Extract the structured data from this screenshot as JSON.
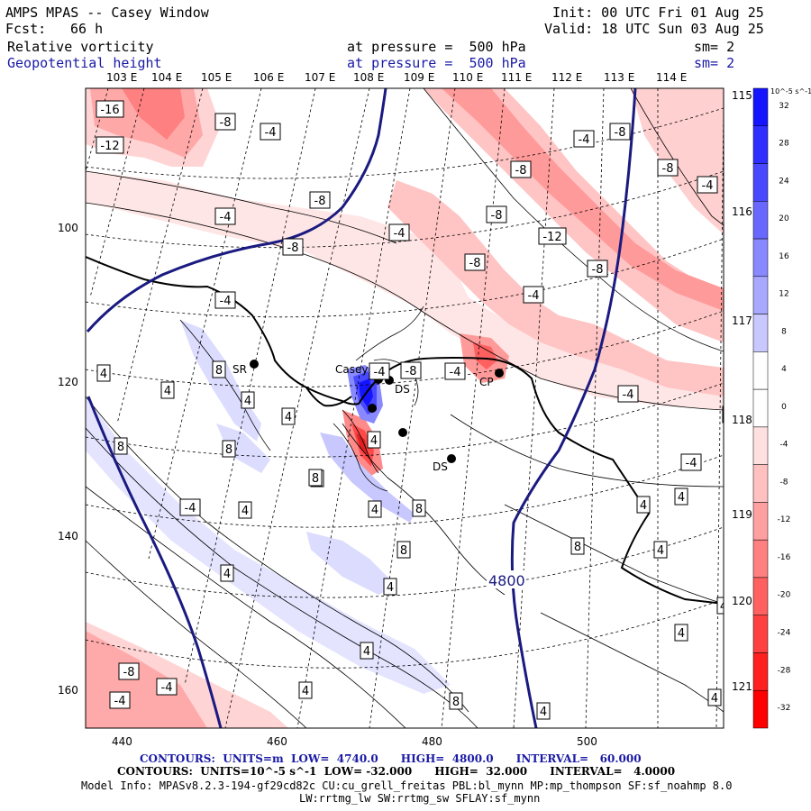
{
  "header": {
    "title": "AMPS MPAS -- Casey Window",
    "init": "Init: 00 UTC Fri 01 Aug 25",
    "fcst_label": "Fcst:",
    "fcst_value": "66 h",
    "valid": "Valid: 18 UTC Sun 03 Aug 25",
    "field1": "Relative vorticity",
    "field1_level": "at pressure =  500 hPa",
    "field1_sm": "sm= 2",
    "field2": "Geopotential height",
    "field2_level": "at pressure =  500 hPa",
    "field2_sm": "sm= 2"
  },
  "lon_labels": [
    "103 E",
    "104 E",
    "105 E",
    "106 E",
    "107 E",
    "108 E",
    "109 E",
    "110 E",
    "111 E",
    "112 E",
    "113 E",
    "114 E",
    "115 E",
    "116 E",
    "117 E",
    "118 E",
    "119 E",
    "120 E",
    "121 E"
  ],
  "x_axis": [
    "440",
    "460",
    "480",
    "500"
  ],
  "y_axis": [
    "100",
    "120",
    "140",
    "160"
  ],
  "stations": [
    "SR",
    "Casey",
    "DS",
    "CP",
    "DS"
  ],
  "height_contour_label": "4800",
  "vort_labels": [
    "-16",
    "-12",
    "-8",
    "-4",
    "-4",
    "-8",
    "-4",
    "-8",
    "-4",
    "-4",
    "-8",
    "-8",
    "-8",
    "-4",
    "-8",
    "-12",
    "-8",
    "-8",
    "-4",
    "-4",
    "-4",
    "4",
    "4",
    "8",
    "4",
    "8",
    "4",
    "8",
    "8",
    "-8",
    "-4",
    "4",
    "-4",
    "8",
    "4",
    "4",
    "8",
    "8",
    "4",
    "4",
    "-4",
    "4",
    "4",
    "4",
    "4",
    "4",
    "8",
    "4",
    "4",
    "4",
    "-8",
    "-4",
    "-4",
    "4",
    "8",
    "4",
    "4"
  ],
  "colorbar": {
    "units": "10^-5 s^-1",
    "labels": [
      "32",
      "28",
      "24",
      "20",
      "16",
      "12",
      "8",
      "4",
      "0",
      "-4",
      "-8",
      "-12",
      "-16",
      "-20",
      "-24",
      "-28",
      "-32"
    ],
    "colors": [
      "#1414ff",
      "#2e2eff",
      "#4848ff",
      "#6868ff",
      "#8888ff",
      "#a8a8ff",
      "#c8c8ff",
      "#ffffff",
      "#ffffff",
      "#ffe0e0",
      "#ffc0c0",
      "#ffa0a0",
      "#ff8080",
      "#ff6060",
      "#ff4040",
      "#ff2020",
      "#ff0000"
    ]
  },
  "footer": {
    "contours1": "CONTOURS:  UNITS=m  LOW=  4740.0      HIGH=  4800.0      INTERVAL=   60.000",
    "contours2": "CONTOURS:  UNITS=10^-5 s^-1  LOW= -32.000      HIGH=  32.000      INTERVAL=   4.0000",
    "model_info": "Model Info: MPASv8.2.3-194-gf29cd82c CU:cu_grell_freitas PBL:bl_mynn MP:mp_thompson SF:sf_noahmp 8.0",
    "model_info2": "LW:rrtmg_lw SW:rrtmg_sw SFLAY:sf_mynn"
  }
}
